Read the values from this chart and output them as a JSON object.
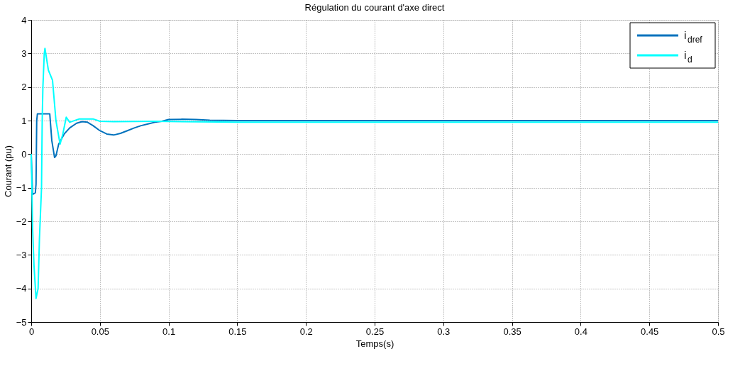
{
  "chart_data": {
    "type": "line",
    "title": "Régulation du courant d'axe direct",
    "xlabel": "Temps(s)",
    "ylabel": "Courant (pu)",
    "xlim": [
      0,
      0.5
    ],
    "xticks": [
      0,
      0.05,
      0.1,
      0.15,
      0.2,
      0.25,
      0.3,
      0.35,
      0.4,
      0.45,
      0.5
    ],
    "ylim": [
      -5,
      4
    ],
    "yticks": [
      -5,
      -4,
      -3,
      -2,
      -1,
      0,
      1,
      2,
      3,
      4
    ],
    "grid": true,
    "legend": "top right",
    "line_style": "solid",
    "marker": "none",
    "series": [
      {
        "name": "i$_{dref}$",
        "color": "#0072bd",
        "x": [
          0,
          0.001,
          0.003,
          0.0035,
          0.004,
          0.0045,
          0.0135,
          0.015,
          0.017,
          0.018,
          0.02,
          0.024,
          0.028,
          0.033,
          0.037,
          0.041,
          0.045,
          0.05,
          0.055,
          0.06,
          0.065,
          0.07,
          0.075,
          0.08,
          0.085,
          0.09,
          0.095,
          0.1,
          0.11,
          0.12,
          0.13,
          0.15,
          0.2,
          0.25,
          0.3,
          0.35,
          0.4,
          0.45,
          0.5
        ],
        "values": [
          0,
          -1.2,
          -1.15,
          -0.9,
          1.0,
          1.2,
          1.2,
          0.4,
          -0.1,
          -0.05,
          0.3,
          0.6,
          0.78,
          0.92,
          0.97,
          0.95,
          0.85,
          0.7,
          0.6,
          0.57,
          0.62,
          0.7,
          0.78,
          0.85,
          0.9,
          0.95,
          0.98,
          1.03,
          1.04,
          1.03,
          1.01,
          1.0,
          1.0,
          1.0,
          1.0,
          1.0,
          1.0,
          1.0,
          1.0
        ]
      },
      {
        "name": "i$_{d}$",
        "color": "#00ffff",
        "x": [
          0,
          0.0005,
          0.001,
          0.002,
          0.0035,
          0.005,
          0.006,
          0.0075,
          0.008,
          0.0085,
          0.0095,
          0.01,
          0.0125,
          0.0155,
          0.018,
          0.021,
          0.023,
          0.0255,
          0.028,
          0.035,
          0.045,
          0.05,
          0.06,
          0.09,
          0.15,
          0.2,
          0.3,
          0.4,
          0.5
        ],
        "values": [
          0,
          -1.0,
          -2.2,
          -3.3,
          -4.3,
          -4.0,
          -2.5,
          -1.0,
          1.0,
          2.0,
          3.0,
          3.15,
          2.5,
          2.2,
          1.0,
          0.3,
          0.6,
          1.1,
          0.95,
          1.05,
          1.05,
          0.98,
          0.97,
          0.98,
          0.95,
          0.95,
          0.95,
          0.95,
          0.95
        ]
      }
    ]
  }
}
